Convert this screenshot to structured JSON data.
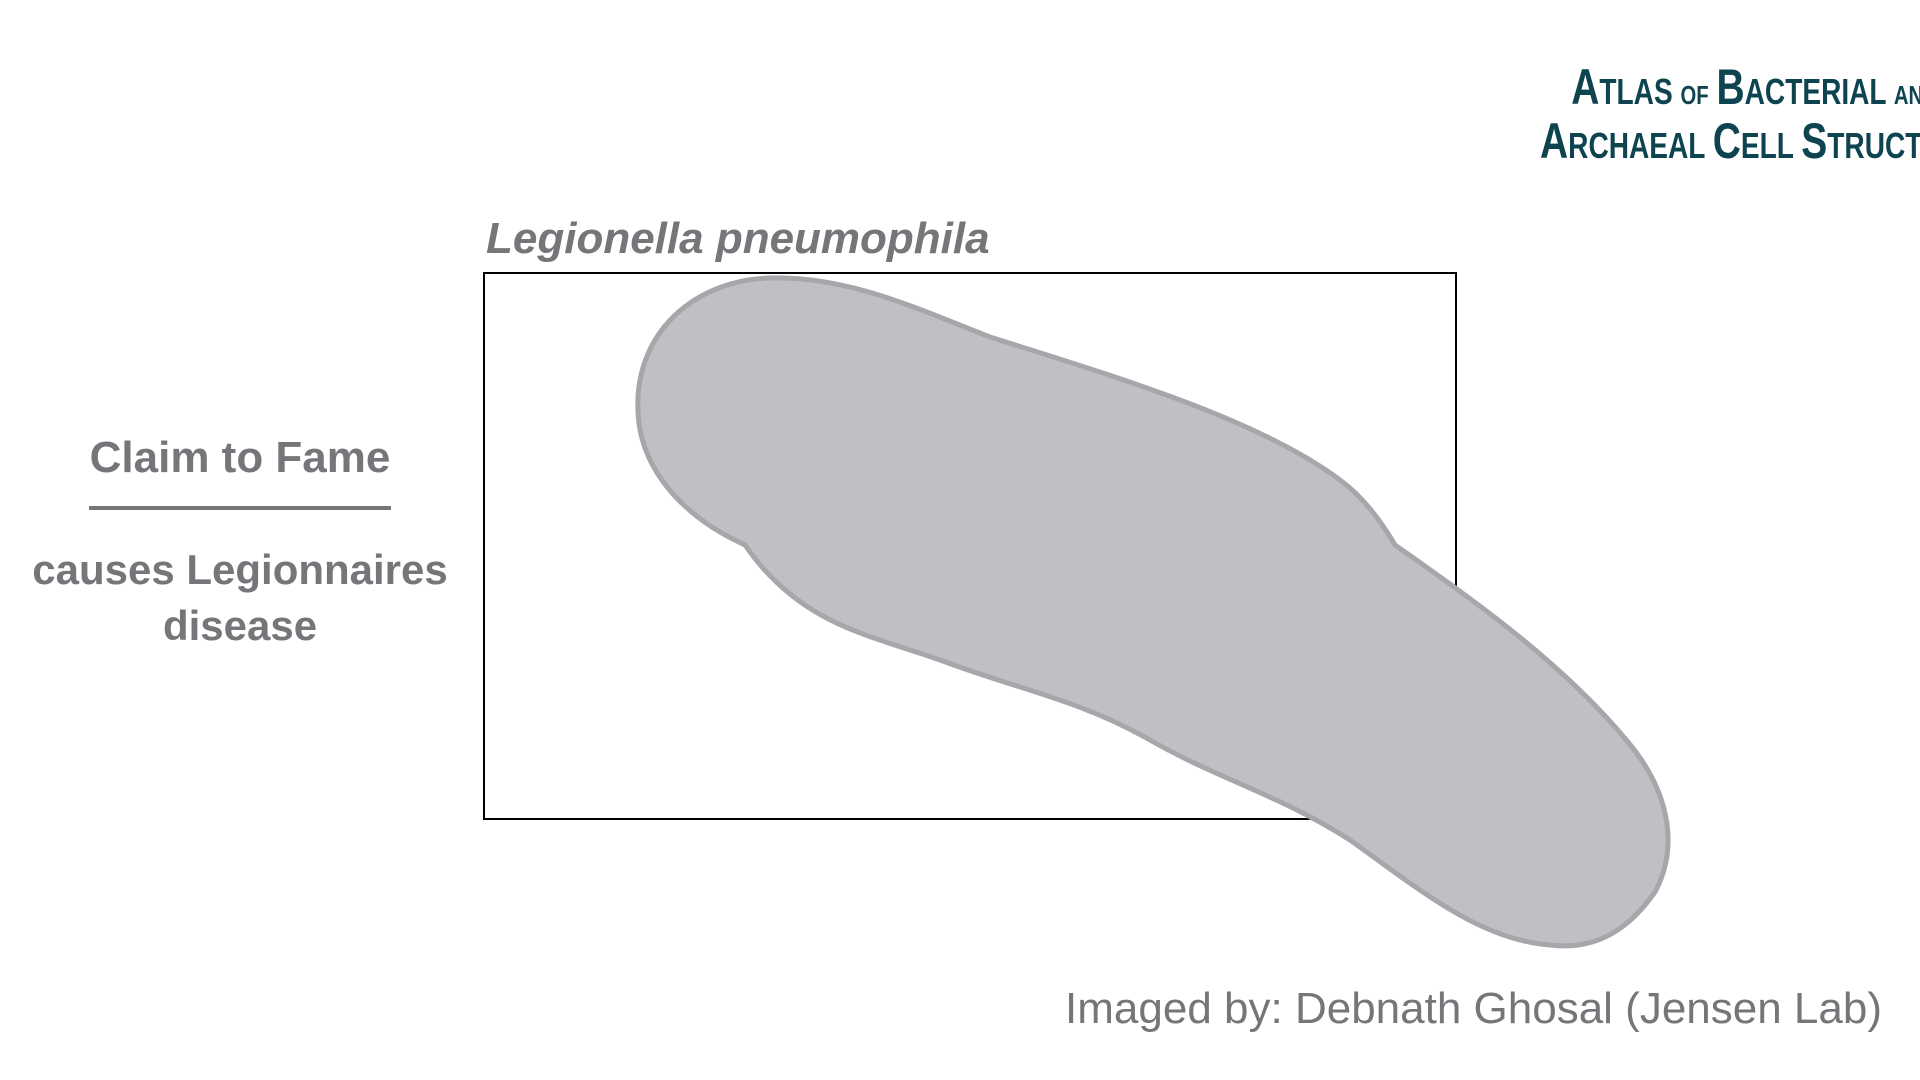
{
  "logo": {
    "line1_first": "A",
    "line1_rest": "TLAS",
    "line1_of": "OF",
    "line1_b": "B",
    "line1_bacterial": "ACTERIAL",
    "line1_and": "AND",
    "line2_a": "A",
    "line2_rchaeal": "RCHAEAL",
    "line2_c": "C",
    "line2_ell": "ELL",
    "line2_s": "S",
    "line2_tructure": "TRUCTURE"
  },
  "species_name": "Legionella pneumophila",
  "claim_to_fame": {
    "heading": "Claim to Fame",
    "description_line1": "causes Legionnaires",
    "description_line2": "disease"
  },
  "credit": "Imaged by: Debnath Ghosal (Jensen Lab)",
  "colors": {
    "text_gray": "#76767a",
    "logo_teal": "#0e4450",
    "cell_fill": "#bfc0c4",
    "cell_stroke": "#a6a7ab",
    "frame_stroke": "#000000"
  }
}
